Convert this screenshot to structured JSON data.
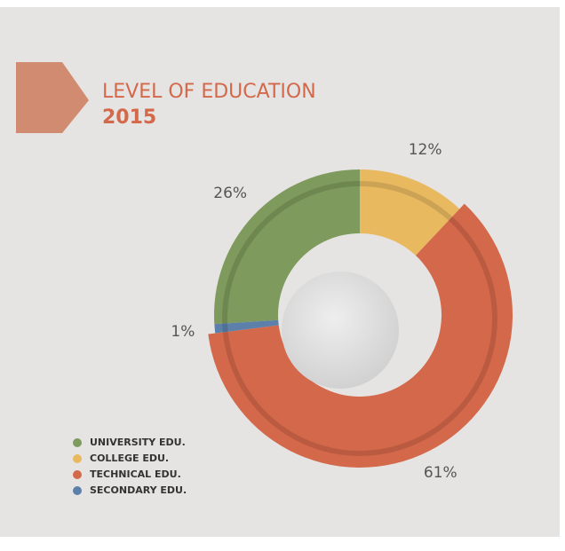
{
  "chart_data": {
    "type": "donut",
    "title": "LEVEL OF EDUCATION",
    "subtitle": "2015",
    "series": [
      {
        "name": "UNIVERSITY EDU.",
        "color": "#7e9a5c",
        "value": 26,
        "value_label": "26%"
      },
      {
        "name": "COLLEGE EDU.",
        "color": "#e9b960",
        "value": 12,
        "value_label": "12%"
      },
      {
        "name": "TECHNICAL EDU.",
        "color": "#d4684a",
        "value": 61,
        "value_label": "61%"
      },
      {
        "name": "SECONDARY EDU.",
        "color": "#5c80aa",
        "value": 1,
        "value_label": "1%"
      }
    ]
  }
}
